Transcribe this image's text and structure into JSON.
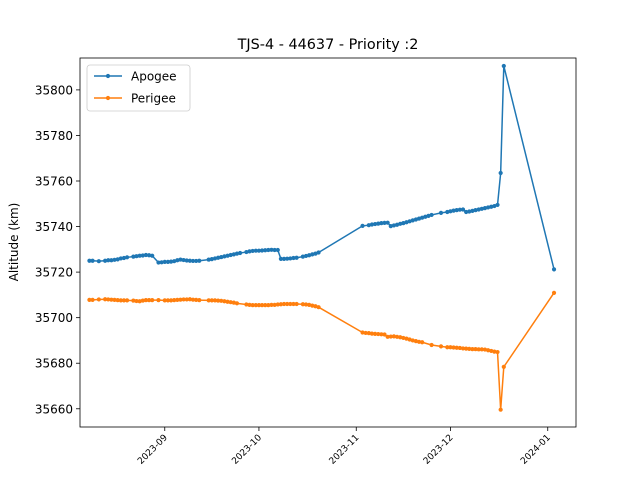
{
  "chart_data": {
    "type": "line",
    "title": "TJS-4 - 44637 - Priority :2",
    "xlabel": "",
    "ylabel": "Altitude (km)",
    "xlim": [
      "2023-08-05",
      "2024-01-10"
    ],
    "ylim": [
      35652,
      35814
    ],
    "x_ticks": [
      "2023-09",
      "2023-10",
      "2023-11",
      "2023-12",
      "2024-01"
    ],
    "y_ticks": [
      35660,
      35680,
      35700,
      35720,
      35740,
      35760,
      35780,
      35800
    ],
    "grid": false,
    "legend": "top-left",
    "series": [
      {
        "name": "Apogee",
        "color": "#1f77b4",
        "points": [
          [
            "2023-08-08",
            35725.0
          ],
          [
            "2023-08-09",
            35725.0
          ],
          [
            "2023-08-11",
            35724.8
          ],
          [
            "2023-08-13",
            35725.0
          ],
          [
            "2023-08-14",
            35725.2
          ],
          [
            "2023-08-15",
            35725.2
          ],
          [
            "2023-08-16",
            35725.4
          ],
          [
            "2023-08-17",
            35725.6
          ],
          [
            "2023-08-18",
            35726.0
          ],
          [
            "2023-08-19",
            35726.2
          ],
          [
            "2023-08-20",
            35726.5
          ],
          [
            "2023-08-22",
            35726.8
          ],
          [
            "2023-08-23",
            35727.0
          ],
          [
            "2023-08-24",
            35727.2
          ],
          [
            "2023-08-25",
            35727.3
          ],
          [
            "2023-08-26",
            35727.5
          ],
          [
            "2023-08-27",
            35727.4
          ],
          [
            "2023-08-28",
            35727.2
          ],
          [
            "2023-08-30",
            35724.2
          ],
          [
            "2023-08-31",
            35724.3
          ],
          [
            "2023-09-01",
            35724.5
          ],
          [
            "2023-09-02",
            35724.5
          ],
          [
            "2023-09-03",
            35724.6
          ],
          [
            "2023-09-04",
            35724.8
          ],
          [
            "2023-09-05",
            35725.2
          ],
          [
            "2023-09-06",
            35725.5
          ],
          [
            "2023-09-07",
            35725.3
          ],
          [
            "2023-09-08",
            35725.1
          ],
          [
            "2023-09-09",
            35725.0
          ],
          [
            "2023-09-10",
            35724.9
          ],
          [
            "2023-09-11",
            35724.9
          ],
          [
            "2023-09-12",
            35725.0
          ],
          [
            "2023-09-15",
            35725.5
          ],
          [
            "2023-09-16",
            35725.7
          ],
          [
            "2023-09-17",
            35726.0
          ],
          [
            "2023-09-18",
            35726.3
          ],
          [
            "2023-09-19",
            35726.6
          ],
          [
            "2023-09-20",
            35726.9
          ],
          [
            "2023-09-21",
            35727.2
          ],
          [
            "2023-09-22",
            35727.5
          ],
          [
            "2023-09-23",
            35727.8
          ],
          [
            "2023-09-24",
            35728.1
          ],
          [
            "2023-09-25",
            35728.4
          ],
          [
            "2023-09-27",
            35728.8
          ],
          [
            "2023-09-28",
            35729.1
          ],
          [
            "2023-09-29",
            35729.3
          ],
          [
            "2023-09-30",
            35729.4
          ],
          [
            "2023-10-01",
            35729.4
          ],
          [
            "2023-10-02",
            35729.5
          ],
          [
            "2023-10-03",
            35729.6
          ],
          [
            "2023-10-04",
            35729.7
          ],
          [
            "2023-10-05",
            35729.8
          ],
          [
            "2023-10-06",
            35729.7
          ],
          [
            "2023-10-07",
            35729.7
          ],
          [
            "2023-10-08",
            35725.8
          ],
          [
            "2023-10-09",
            35725.8
          ],
          [
            "2023-10-10",
            35725.9
          ],
          [
            "2023-10-11",
            35726.0
          ],
          [
            "2023-10-12",
            35726.2
          ],
          [
            "2023-10-13",
            35726.3
          ],
          [
            "2023-10-15",
            35726.8
          ],
          [
            "2023-10-16",
            35727.1
          ],
          [
            "2023-10-17",
            35727.4
          ],
          [
            "2023-10-18",
            35727.8
          ],
          [
            "2023-10-19",
            35728.1
          ],
          [
            "2023-10-20",
            35728.6
          ],
          [
            "2023-11-03",
            35740.3
          ],
          [
            "2023-11-05",
            35740.6
          ],
          [
            "2023-11-06",
            35740.9
          ],
          [
            "2023-11-07",
            35741.1
          ],
          [
            "2023-11-08",
            35741.3
          ],
          [
            "2023-11-09",
            35741.5
          ],
          [
            "2023-11-10",
            35741.6
          ],
          [
            "2023-11-11",
            35741.7
          ],
          [
            "2023-11-12",
            35740.2
          ],
          [
            "2023-11-13",
            35740.5
          ],
          [
            "2023-11-14",
            35740.8
          ],
          [
            "2023-11-15",
            35741.2
          ],
          [
            "2023-11-16",
            35741.5
          ],
          [
            "2023-11-17",
            35741.9
          ],
          [
            "2023-11-18",
            35742.3
          ],
          [
            "2023-11-19",
            35742.7
          ],
          [
            "2023-11-20",
            35743.1
          ],
          [
            "2023-11-21",
            35743.5
          ],
          [
            "2023-11-22",
            35743.9
          ],
          [
            "2023-11-23",
            35744.3
          ],
          [
            "2023-11-24",
            35744.7
          ],
          [
            "2023-11-25",
            35745.1
          ],
          [
            "2023-11-28",
            35746.0
          ],
          [
            "2023-11-30",
            35746.4
          ],
          [
            "2023-12-01",
            35746.7
          ],
          [
            "2023-12-02",
            35747.0
          ],
          [
            "2023-12-03",
            35747.2
          ],
          [
            "2023-12-04",
            35747.4
          ],
          [
            "2023-12-05",
            35747.5
          ],
          [
            "2023-12-06",
            35746.4
          ],
          [
            "2023-12-07",
            35746.6
          ],
          [
            "2023-12-08",
            35746.9
          ],
          [
            "2023-12-09",
            35747.2
          ],
          [
            "2023-12-10",
            35747.5
          ],
          [
            "2023-12-11",
            35747.8
          ],
          [
            "2023-12-12",
            35748.1
          ],
          [
            "2023-12-13",
            35748.4
          ],
          [
            "2023-12-14",
            35748.7
          ],
          [
            "2023-12-15",
            35749.0
          ],
          [
            "2023-12-16",
            35749.5
          ],
          [
            "2023-12-17",
            35763.5
          ],
          [
            "2023-12-18",
            35810.5
          ],
          [
            "2024-01-03",
            35721.2
          ]
        ]
      },
      {
        "name": "Perigee",
        "color": "#ff7f0e",
        "points": [
          [
            "2023-08-08",
            35707.8
          ],
          [
            "2023-08-09",
            35707.8
          ],
          [
            "2023-08-11",
            35708.0
          ],
          [
            "2023-08-13",
            35708.1
          ],
          [
            "2023-08-14",
            35708.0
          ],
          [
            "2023-08-15",
            35707.9
          ],
          [
            "2023-08-16",
            35707.8
          ],
          [
            "2023-08-17",
            35707.7
          ],
          [
            "2023-08-18",
            35707.6
          ],
          [
            "2023-08-19",
            35707.6
          ],
          [
            "2023-08-20",
            35707.6
          ],
          [
            "2023-08-22",
            35707.5
          ],
          [
            "2023-08-23",
            35707.3
          ],
          [
            "2023-08-24",
            35707.2
          ],
          [
            "2023-08-25",
            35707.5
          ],
          [
            "2023-08-26",
            35707.7
          ],
          [
            "2023-08-27",
            35707.7
          ],
          [
            "2023-08-28",
            35707.7
          ],
          [
            "2023-08-30",
            35707.7
          ],
          [
            "2023-09-01",
            35707.6
          ],
          [
            "2023-09-02",
            35707.6
          ],
          [
            "2023-09-03",
            35707.6
          ],
          [
            "2023-09-04",
            35707.7
          ],
          [
            "2023-09-05",
            35707.8
          ],
          [
            "2023-09-06",
            35707.9
          ],
          [
            "2023-09-07",
            35708.0
          ],
          [
            "2023-09-08",
            35708.0
          ],
          [
            "2023-09-09",
            35708.1
          ],
          [
            "2023-09-10",
            35707.9
          ],
          [
            "2023-09-11",
            35707.8
          ],
          [
            "2023-09-12",
            35707.7
          ],
          [
            "2023-09-15",
            35707.6
          ],
          [
            "2023-09-16",
            35707.6
          ],
          [
            "2023-09-17",
            35707.6
          ],
          [
            "2023-09-18",
            35707.5
          ],
          [
            "2023-09-19",
            35707.4
          ],
          [
            "2023-09-20",
            35707.2
          ],
          [
            "2023-09-21",
            35707.0
          ],
          [
            "2023-09-22",
            35706.8
          ],
          [
            "2023-09-23",
            35706.6
          ],
          [
            "2023-09-24",
            35706.3
          ],
          [
            "2023-09-27",
            35705.8
          ],
          [
            "2023-09-28",
            35705.6
          ],
          [
            "2023-09-29",
            35705.5
          ],
          [
            "2023-09-30",
            35705.5
          ],
          [
            "2023-10-01",
            35705.5
          ],
          [
            "2023-10-02",
            35705.5
          ],
          [
            "2023-10-03",
            35705.5
          ],
          [
            "2023-10-04",
            35705.5
          ],
          [
            "2023-10-05",
            35705.6
          ],
          [
            "2023-10-06",
            35705.6
          ],
          [
            "2023-10-07",
            35705.8
          ],
          [
            "2023-10-08",
            35705.9
          ],
          [
            "2023-10-09",
            35706.0
          ],
          [
            "2023-10-10",
            35706.0
          ],
          [
            "2023-10-11",
            35706.0
          ],
          [
            "2023-10-12",
            35706.0
          ],
          [
            "2023-10-13",
            35706.0
          ],
          [
            "2023-10-15",
            35705.9
          ],
          [
            "2023-10-16",
            35705.8
          ],
          [
            "2023-10-17",
            35705.6
          ],
          [
            "2023-10-18",
            35705.3
          ],
          [
            "2023-10-19",
            35705.0
          ],
          [
            "2023-10-20",
            35704.6
          ],
          [
            "2023-11-03",
            35693.5
          ],
          [
            "2023-11-04",
            35693.3
          ],
          [
            "2023-11-05",
            35693.2
          ],
          [
            "2023-11-06",
            35693.0
          ],
          [
            "2023-11-07",
            35692.9
          ],
          [
            "2023-11-08",
            35692.8
          ],
          [
            "2023-11-09",
            35692.7
          ],
          [
            "2023-11-10",
            35692.6
          ],
          [
            "2023-11-11",
            35691.6
          ],
          [
            "2023-11-12",
            35691.7
          ],
          [
            "2023-11-13",
            35691.8
          ],
          [
            "2023-11-14",
            35691.6
          ],
          [
            "2023-11-15",
            35691.4
          ],
          [
            "2023-11-16",
            35691.1
          ],
          [
            "2023-11-17",
            35690.8
          ],
          [
            "2023-11-18",
            35690.4
          ],
          [
            "2023-11-19",
            35690.0
          ],
          [
            "2023-11-20",
            35689.7
          ],
          [
            "2023-11-21",
            35689.4
          ],
          [
            "2023-11-22",
            35689.2
          ],
          [
            "2023-11-25",
            35688.0
          ],
          [
            "2023-11-28",
            35687.4
          ],
          [
            "2023-11-30",
            35687.0
          ],
          [
            "2023-12-01",
            35687.0
          ],
          [
            "2023-12-02",
            35686.9
          ],
          [
            "2023-12-03",
            35686.8
          ],
          [
            "2023-12-04",
            35686.7
          ],
          [
            "2023-12-05",
            35686.5
          ],
          [
            "2023-12-06",
            35686.4
          ],
          [
            "2023-12-07",
            35686.3
          ],
          [
            "2023-12-08",
            35686.2
          ],
          [
            "2023-12-09",
            35686.2
          ],
          [
            "2023-12-10",
            35686.1
          ],
          [
            "2023-12-11",
            35686.1
          ],
          [
            "2023-12-12",
            35686.0
          ],
          [
            "2023-12-13",
            35685.7
          ],
          [
            "2023-12-14",
            35685.4
          ],
          [
            "2023-12-15",
            35685.1
          ],
          [
            "2023-12-16",
            35684.9
          ],
          [
            "2023-12-17",
            35659.6
          ],
          [
            "2023-12-18",
            35678.4
          ],
          [
            "2024-01-03",
            35710.9
          ]
        ]
      }
    ]
  }
}
